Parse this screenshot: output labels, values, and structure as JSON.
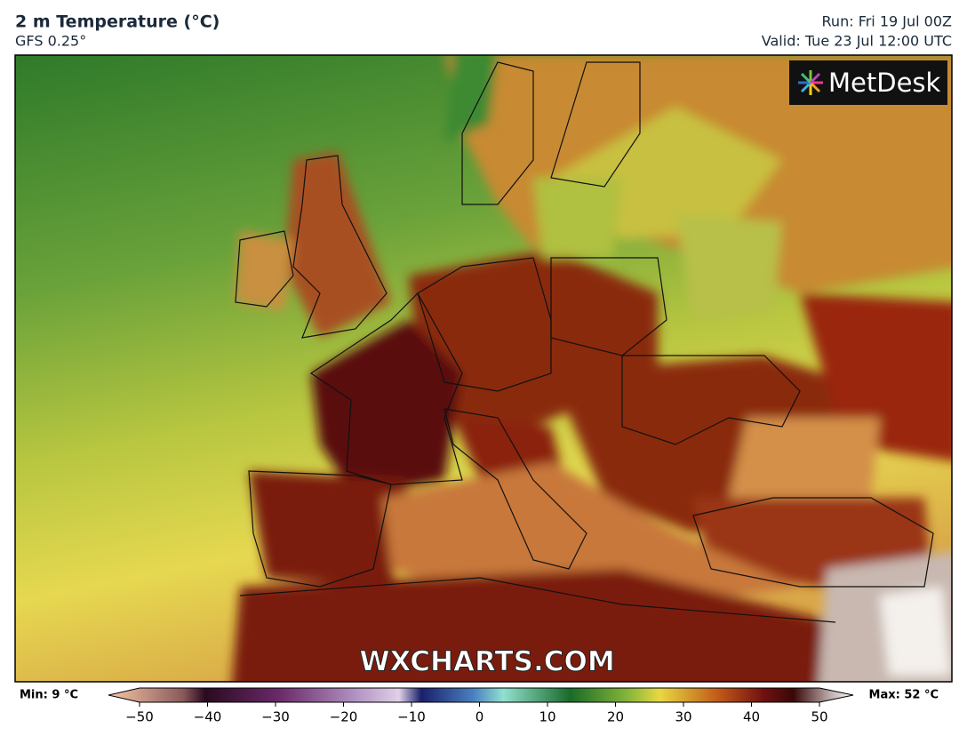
{
  "header": {
    "title": "2 m Temperature (°C)",
    "subtitle": "GFS 0.25°",
    "run": "Run: Fri 19 Jul 00Z",
    "valid": "Valid: Tue 23 Jul 12:00 UTC"
  },
  "logo": "MetDesk",
  "watermark": "WXCHARTS.COM",
  "colorbar": {
    "min_label": "Min: 9 °C",
    "max_label": "Max: 52 °C",
    "lim": [
      -50,
      50
    ],
    "ticks": [
      {
        "value": -50,
        "label": "−50"
      },
      {
        "value": -40,
        "label": "−40"
      },
      {
        "value": -30,
        "label": "−30"
      },
      {
        "value": -20,
        "label": "−20"
      },
      {
        "value": -10,
        "label": "−10"
      },
      0,
      10,
      20,
      30,
      40,
      50
    ]
  }
}
